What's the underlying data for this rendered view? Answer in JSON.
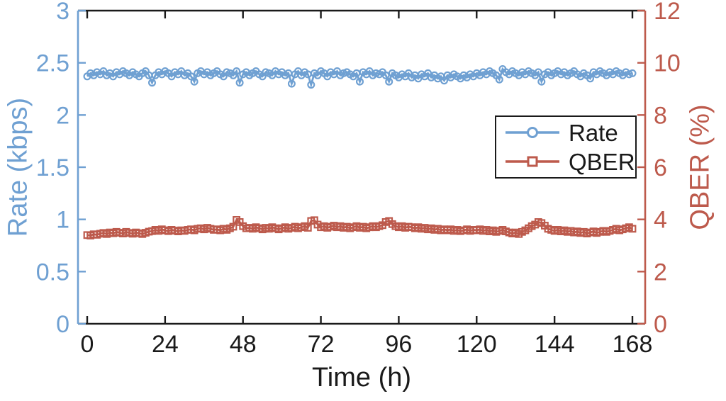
{
  "figure": {
    "background": "#ffffff"
  },
  "chart_data": {
    "type": "line",
    "title": "",
    "xlabel": "Time (h)",
    "grid": false,
    "x_ticks": [
      0,
      24,
      48,
      72,
      96,
      120,
      144,
      168
    ],
    "x_tick_labels": [
      "0",
      "24",
      "48",
      "72",
      "96",
      "120",
      "144",
      "168"
    ],
    "xlim": [
      -3,
      172
    ],
    "frame_color": "#1a1a1a",
    "axes": {
      "left": {
        "label": "Rate (kbps)",
        "color": "#6fa0d2",
        "lim": [
          0,
          3
        ],
        "ticks": [
          0,
          0.5,
          1,
          1.5,
          2,
          2.5,
          3
        ],
        "tick_labels": [
          "0",
          "0.5",
          "1",
          "1.5",
          "2",
          "2.5",
          "3"
        ]
      },
      "right": {
        "label": "QBER (%)",
        "color": "#bd5a4c",
        "lim": [
          0,
          12
        ],
        "ticks": [
          0,
          2,
          4,
          6,
          8,
          10,
          12
        ],
        "tick_labels": [
          "0",
          "2",
          "4",
          "6",
          "8",
          "10",
          "12"
        ]
      }
    },
    "legend": {
      "position": "right-center",
      "entries": [
        {
          "label": "Rate",
          "color": "#6fa0d2",
          "marker": "circle"
        },
        {
          "label": "QBER",
          "color": "#bd5a4c",
          "marker": "square"
        }
      ]
    },
    "series": [
      {
        "name": "Rate",
        "yaxis": "left",
        "color": "#6fa0d2",
        "marker": "circle",
        "x_start_h": 0,
        "x_step_h": 1,
        "y": [
          2.37,
          2.4,
          2.38,
          2.41,
          2.39,
          2.42,
          2.38,
          2.4,
          2.37,
          2.41,
          2.39,
          2.42,
          2.4,
          2.38,
          2.41,
          2.39,
          2.37,
          2.4,
          2.42,
          2.38,
          2.31,
          2.38,
          2.41,
          2.39,
          2.42,
          2.4,
          2.37,
          2.41,
          2.39,
          2.42,
          2.38,
          2.4,
          2.37,
          2.32,
          2.4,
          2.42,
          2.39,
          2.41,
          2.38,
          2.4,
          2.42,
          2.39,
          2.37,
          2.41,
          2.4,
          2.38,
          2.42,
          2.31,
          2.39,
          2.41,
          2.38,
          2.4,
          2.42,
          2.39,
          2.37,
          2.41,
          2.4,
          2.38,
          2.42,
          2.39,
          2.41,
          2.38,
          2.4,
          2.3,
          2.39,
          2.42,
          2.38,
          2.41,
          2.39,
          2.29,
          2.4,
          2.38,
          2.42,
          2.4,
          2.37,
          2.41,
          2.39,
          2.42,
          2.38,
          2.4,
          2.41,
          2.39,
          2.37,
          2.4,
          2.32,
          2.41,
          2.39,
          2.42,
          2.38,
          2.4,
          2.39,
          2.41,
          2.38,
          2.32,
          2.4,
          2.38,
          2.36,
          2.39,
          2.37,
          2.4,
          2.36,
          2.38,
          2.35,
          2.39,
          2.37,
          2.4,
          2.36,
          2.38,
          2.35,
          2.37,
          2.33,
          2.38,
          2.36,
          2.39,
          2.37,
          2.35,
          2.38,
          2.36,
          2.39,
          2.37,
          2.4,
          2.38,
          2.41,
          2.39,
          2.42,
          2.4,
          2.38,
          2.34,
          2.44,
          2.41,
          2.39,
          2.42,
          2.4,
          2.38,
          2.41,
          2.39,
          2.42,
          2.4,
          2.38,
          2.41,
          2.32,
          2.39,
          2.41,
          2.38,
          2.4,
          2.42,
          2.39,
          2.41,
          2.38,
          2.4,
          2.42,
          2.39,
          2.37,
          2.4,
          2.38,
          2.35,
          2.41,
          2.39,
          2.42,
          2.4,
          2.38,
          2.41,
          2.39,
          2.42,
          2.4,
          2.38,
          2.41,
          2.39,
          2.4
        ]
      },
      {
        "name": "QBER",
        "yaxis": "right",
        "color": "#bd5a4c",
        "marker": "square",
        "x_start_h": 0,
        "x_step_h": 1,
        "y": [
          3.4,
          3.38,
          3.43,
          3.41,
          3.45,
          3.48,
          3.44,
          3.5,
          3.47,
          3.52,
          3.49,
          3.46,
          3.52,
          3.48,
          3.45,
          3.5,
          3.47,
          3.44,
          3.49,
          3.53,
          3.55,
          3.6,
          3.56,
          3.62,
          3.58,
          3.55,
          3.6,
          3.57,
          3.54,
          3.58,
          3.56,
          3.6,
          3.62,
          3.58,
          3.64,
          3.66,
          3.62,
          3.68,
          3.64,
          3.6,
          3.62,
          3.58,
          3.64,
          3.6,
          3.66,
          3.72,
          3.98,
          3.9,
          3.74,
          3.66,
          3.68,
          3.64,
          3.7,
          3.66,
          3.62,
          3.68,
          3.64,
          3.7,
          3.66,
          3.62,
          3.66,
          3.7,
          3.64,
          3.68,
          3.72,
          3.66,
          3.7,
          3.74,
          3.68,
          3.94,
          3.97,
          3.8,
          3.7,
          3.74,
          3.68,
          3.72,
          3.76,
          3.7,
          3.74,
          3.68,
          3.72,
          3.66,
          3.7,
          3.74,
          3.68,
          3.72,
          3.66,
          3.7,
          3.74,
          3.7,
          3.74,
          3.78,
          3.9,
          3.94,
          3.82,
          3.74,
          3.7,
          3.74,
          3.68,
          3.72,
          3.7,
          3.66,
          3.7,
          3.64,
          3.68,
          3.62,
          3.66,
          3.6,
          3.64,
          3.58,
          3.62,
          3.58,
          3.62,
          3.56,
          3.6,
          3.55,
          3.58,
          3.62,
          3.56,
          3.6,
          3.58,
          3.62,
          3.56,
          3.6,
          3.54,
          3.58,
          3.52,
          3.56,
          3.6,
          3.54,
          3.5,
          3.46,
          3.5,
          3.44,
          3.52,
          3.58,
          3.66,
          3.74,
          3.8,
          3.9,
          3.86,
          3.76,
          3.64,
          3.6,
          3.56,
          3.6,
          3.54,
          3.58,
          3.52,
          3.56,
          3.5,
          3.54,
          3.48,
          3.52,
          3.46,
          3.5,
          3.54,
          3.48,
          3.52,
          3.56,
          3.52,
          3.56,
          3.6,
          3.64,
          3.58,
          3.62,
          3.66,
          3.7,
          3.64
        ]
      }
    ]
  }
}
